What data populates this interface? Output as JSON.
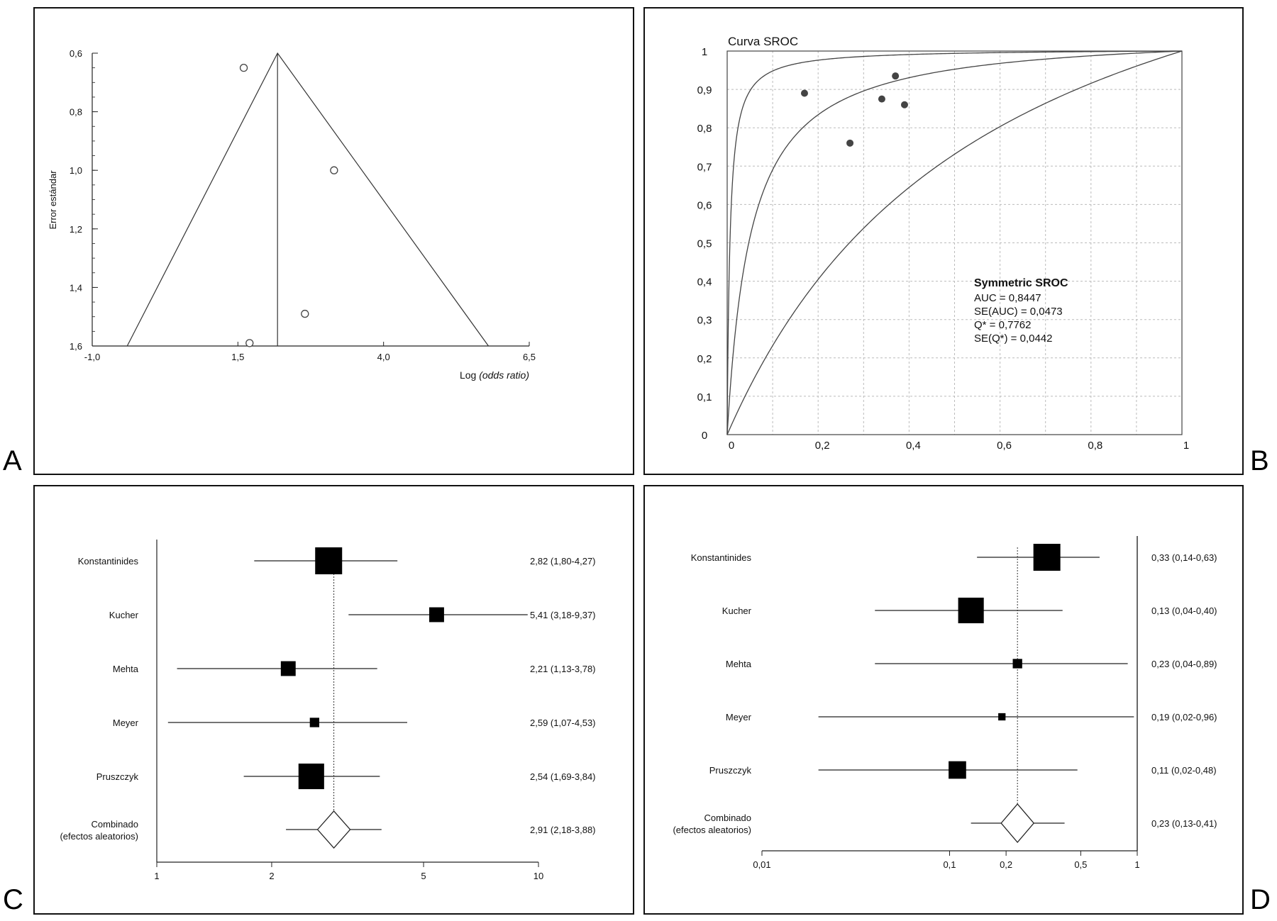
{
  "panel_letters": {
    "a": "A",
    "b": "B",
    "c": "C",
    "d": "D"
  },
  "chart_data": [
    {
      "panel": "A",
      "type": "scatter",
      "subtype": "funnel",
      "title": "",
      "xlabel_prefix": "Log",
      "xlabel_italic": "(odds ratio)",
      "ylabel": "Error estándar",
      "xlim": [
        -1.0,
        6.5
      ],
      "ylim": [
        1.6,
        0.6
      ],
      "y_reversed": true,
      "x_ticks": [
        -1.0,
        1.5,
        4.0,
        6.5
      ],
      "x_tick_labels": [
        "-1,0",
        "1,5",
        "4,0",
        "6,5"
      ],
      "y_ticks": [
        0.6,
        0.8,
        1.0,
        1.2,
        1.4,
        1.6
      ],
      "y_tick_labels": [
        "0,6",
        "0,8",
        "1,0",
        "1,2",
        "1,4",
        "1,6"
      ],
      "pooled_log_or": 2.18,
      "funnel_apex": [
        2.18,
        0.6
      ],
      "funnel_base_left": [
        -0.4,
        1.6
      ],
      "funnel_base_right": [
        5.8,
        1.6
      ],
      "points": [
        {
          "x": 1.6,
          "y": 0.65
        },
        {
          "x": 3.15,
          "y": 1.0
        },
        {
          "x": 2.65,
          "y": 1.49
        },
        {
          "x": 1.7,
          "y": 1.59
        }
      ]
    },
    {
      "panel": "B",
      "type": "line",
      "subtype": "sroc",
      "title": "Curva SROC",
      "xlim": [
        0,
        1
      ],
      "ylim": [
        0,
        1
      ],
      "grid": true,
      "x_ticks": [
        0,
        0.2,
        0.4,
        0.6,
        0.8,
        1
      ],
      "x_tick_labels": [
        "0",
        "0,2",
        "0,4",
        "0,6",
        "0,8",
        "1"
      ],
      "y_ticks": [
        0,
        0.1,
        0.2,
        0.3,
        0.4,
        0.5,
        0.6,
        0.7,
        0.8,
        0.9,
        1
      ],
      "y_tick_labels": [
        "0",
        "0,1",
        "0,2",
        "0,3",
        "0,4",
        "0,5",
        "0,6",
        "0,7",
        "0,8",
        "0,9",
        "1"
      ],
      "curves_log_dor": [
        5.1,
        3.0,
        1.0
      ],
      "points": [
        {
          "x": 0.17,
          "y": 0.89
        },
        {
          "x": 0.27,
          "y": 0.76
        },
        {
          "x": 0.34,
          "y": 0.875
        },
        {
          "x": 0.37,
          "y": 0.935
        },
        {
          "x": 0.39,
          "y": 0.86
        }
      ],
      "annotation": {
        "heading": "Symmetric SROC",
        "lines": [
          "AUC = 0,8447",
          "SE(AUC) = 0,0473",
          "Q* = 0,7762",
          "SE(Q*) = 0,0442"
        ]
      }
    },
    {
      "panel": "C",
      "type": "forest",
      "scale": "log",
      "xlim": [
        1,
        10
      ],
      "x_ticks": [
        1,
        2,
        5,
        10
      ],
      "x_tick_labels": [
        "1",
        "2",
        "5",
        "10"
      ],
      "pooled": 2.91,
      "studies": [
        {
          "name": "Konstantinides",
          "est": 2.82,
          "lo": 1.8,
          "hi": 4.27,
          "weight": 1.0,
          "label": "2,82 (1,80-4,27)"
        },
        {
          "name": "Kucher",
          "est": 5.41,
          "lo": 3.18,
          "hi": 9.37,
          "weight": 0.55,
          "label": "5,41 (3,18-9,37)"
        },
        {
          "name": "Mehta",
          "est": 2.21,
          "lo": 1.13,
          "hi": 3.78,
          "weight": 0.55,
          "label": "2,21 (1,13-3,78)"
        },
        {
          "name": "Meyer",
          "est": 2.59,
          "lo": 1.07,
          "hi": 4.53,
          "weight": 0.35,
          "label": "2,59 (1,07-4,53)"
        },
        {
          "name": "Pruszczyk",
          "est": 2.54,
          "lo": 1.69,
          "hi": 3.84,
          "weight": 0.95,
          "label": "2,54 (1,69-3,84)"
        }
      ],
      "combined": {
        "line1": "Combinado",
        "line2": "(efectos aleatorios)",
        "est": 2.91,
        "lo": 2.18,
        "hi": 3.88,
        "label": "2,91 (2,18-3,88)"
      }
    },
    {
      "panel": "D",
      "type": "forest",
      "scale": "log",
      "xlim": [
        0.01,
        1
      ],
      "x_ticks": [
        0.01,
        0.1,
        0.2,
        0.5,
        1
      ],
      "x_tick_labels": [
        "0,01",
        "0,1",
        "0,2",
        "0,5",
        "1"
      ],
      "pooled": 0.23,
      "studies": [
        {
          "name": "Konstantinides",
          "est": 0.33,
          "lo": 0.14,
          "hi": 0.63,
          "weight": 1.0,
          "label": "0,33 (0,14-0,63)"
        },
        {
          "name": "Kucher",
          "est": 0.13,
          "lo": 0.04,
          "hi": 0.4,
          "weight": 0.95,
          "label": "0,13 (0,04-0,40)"
        },
        {
          "name": "Mehta",
          "est": 0.23,
          "lo": 0.04,
          "hi": 0.89,
          "weight": 0.35,
          "label": "0,23 (0,04-0,89)"
        },
        {
          "name": "Meyer",
          "est": 0.19,
          "lo": 0.02,
          "hi": 0.96,
          "weight": 0.27,
          "label": "0,19 (0,02-0,96)"
        },
        {
          "name": "Pruszczyk",
          "est": 0.11,
          "lo": 0.02,
          "hi": 0.48,
          "weight": 0.65,
          "label": "0,11 (0,02-0,48)"
        }
      ],
      "combined": {
        "line1": "Combinado",
        "line2": "(efectos aleatorios)",
        "est": 0.23,
        "lo": 0.13,
        "hi": 0.41,
        "label": "0,23 (0,13-0,41)"
      }
    }
  ]
}
